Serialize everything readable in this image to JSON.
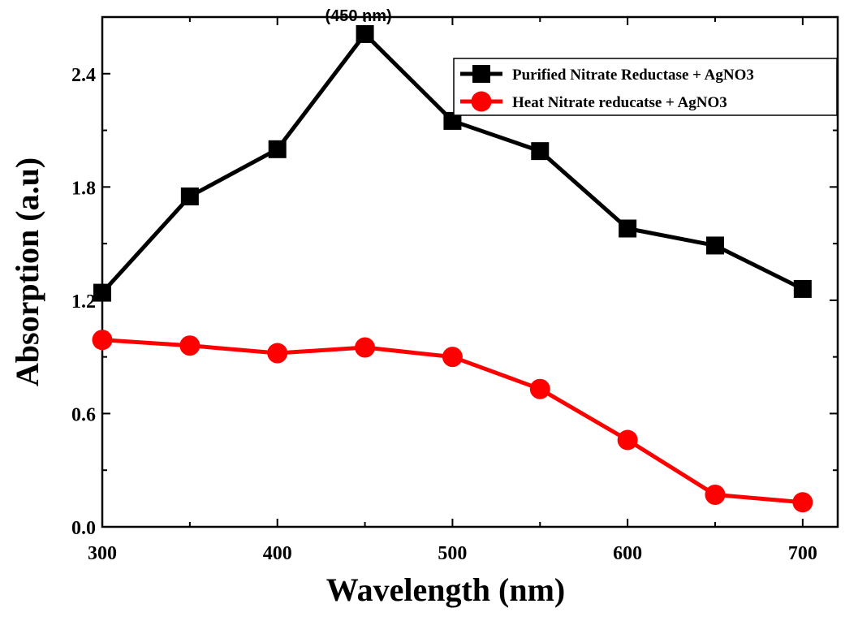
{
  "chart_data": {
    "type": "line",
    "title": "",
    "xlabel": "Wavelength (nm)",
    "ylabel": "Absorption (a.u)",
    "xlim": [
      300,
      720
    ],
    "ylim": [
      0,
      2.7
    ],
    "xticks": [
      300,
      400,
      500,
      600,
      700
    ],
    "xtick_labels": [
      "300",
      "400",
      "500",
      "600",
      "700"
    ],
    "yticks": [
      0,
      0.6,
      1.2,
      1.8,
      2.4
    ],
    "ytick_labels": [
      "0.0",
      "0.6",
      "1.2",
      "1.8",
      "2.4"
    ],
    "grid": false,
    "legend_position": "top-right",
    "x": [
      300,
      350,
      400,
      450,
      500,
      550,
      600,
      650,
      700
    ],
    "series": [
      {
        "name": "Purified Nitrate Reductase + AgNO3",
        "color": "#000000",
        "marker": "square",
        "values": [
          1.24,
          1.75,
          2.0,
          2.61,
          2.15,
          1.99,
          1.58,
          1.49,
          1.26
        ]
      },
      {
        "name": "Heat Nitrate reducatse        + AgNO3",
        "color": "#ff0000",
        "marker": "circle",
        "values": [
          0.99,
          0.96,
          0.92,
          0.95,
          0.9,
          0.73,
          0.46,
          0.17,
          0.13
        ]
      }
    ],
    "annotations": [
      {
        "text": "(450 nm)",
        "x": 450,
        "y": 2.61
      }
    ]
  }
}
